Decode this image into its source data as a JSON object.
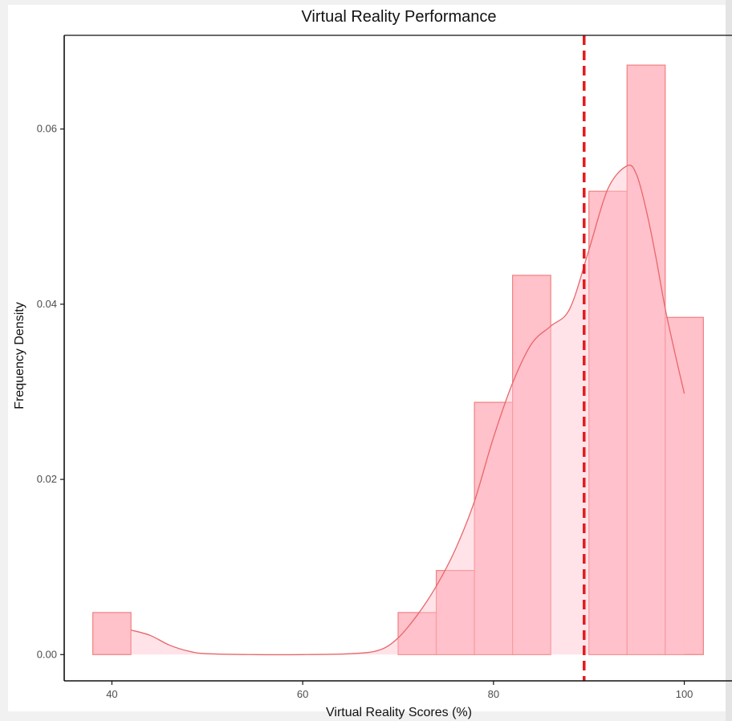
{
  "chart_data": {
    "type": "bar",
    "title": "Virtual Reality Performance",
    "xlabel": "Virtual Reality Scores (%)",
    "ylabel": "Frequency Density",
    "xlim": [
      35,
      105
    ],
    "ylim": [
      -0.003,
      0.0707
    ],
    "x_ticks": [
      {
        "value": 40,
        "label": "40"
      },
      {
        "value": 60,
        "label": "60"
      },
      {
        "value": 80,
        "label": "80"
      },
      {
        "value": 100,
        "label": "100"
      }
    ],
    "y_ticks": [
      {
        "value": 0,
        "label": "0.00"
      },
      {
        "value": 0.02,
        "label": "0.02"
      },
      {
        "value": 0.04,
        "label": "0.04"
      },
      {
        "value": 0.06,
        "label": "0.06"
      }
    ],
    "histogram": {
      "bin_width": 4,
      "bins": [
        {
          "x0": 38,
          "x1": 42,
          "density": 0.0048
        },
        {
          "x0": 70,
          "x1": 74,
          "density": 0.0048
        },
        {
          "x0": 74,
          "x1": 78,
          "density": 0.0096
        },
        {
          "x0": 78,
          "x1": 82,
          "density": 0.0288
        },
        {
          "x0": 82,
          "x1": 86,
          "density": 0.0433
        },
        {
          "x0": 86,
          "x1": 90,
          "density": 0.0
        },
        {
          "x0": 90,
          "x1": 94,
          "density": 0.0529
        },
        {
          "x0": 94,
          "x1": 98,
          "density": 0.0673
        },
        {
          "x0": 98,
          "x1": 102,
          "density": 0.0385
        }
      ]
    },
    "density_curve": {
      "x": [
        42,
        44,
        46,
        48,
        50,
        55,
        60,
        65,
        68,
        70,
        72,
        74,
        76,
        78,
        80,
        82,
        84,
        86,
        88,
        90,
        92,
        94,
        95,
        96,
        97,
        98,
        99,
        100
      ],
      "y": [
        0.0028,
        0.0022,
        0.0011,
        0.0004,
        0.0001,
        0.0,
        0.0,
        0.0001,
        0.0005,
        0.0019,
        0.0045,
        0.0078,
        0.012,
        0.0175,
        0.0248,
        0.031,
        0.0355,
        0.0375,
        0.0395,
        0.0462,
        0.0532,
        0.0558,
        0.0548,
        0.0508,
        0.0455,
        0.0395,
        0.0345,
        0.0298
      ]
    },
    "reference_line": {
      "x": 89.5,
      "style": "dashed"
    },
    "grid": false,
    "legend": "none",
    "colors": {
      "bar_fill": "#ffb6c1",
      "bar_stroke": "#f08080",
      "bar_overlap_fill": "#ff9aaa",
      "density_fill": "#ffc0cb",
      "density_line": "#e8666a",
      "reference_line": "#e41a1c",
      "axis": "#111111"
    }
  }
}
